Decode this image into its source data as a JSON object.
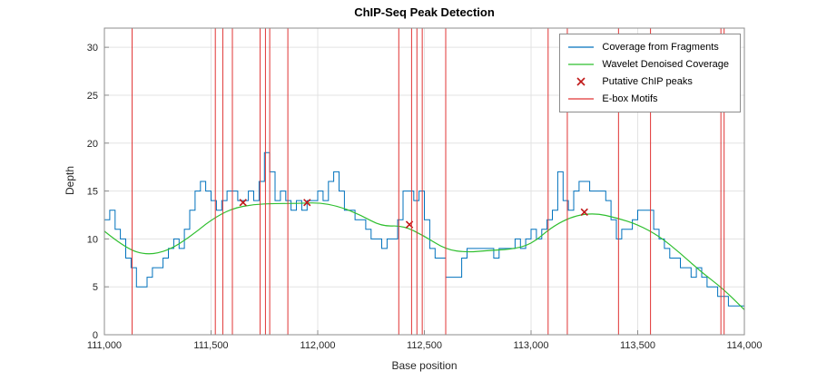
{
  "chart_data": {
    "type": "line",
    "title": "ChIP-Seq Peak Detection",
    "xlabel": "Base position",
    "ylabel": "Depth",
    "xlim": [
      111000,
      114000
    ],
    "ylim": [
      0,
      32
    ],
    "grid": true,
    "legend_position": "northeast",
    "xticks": {
      "values": [
        111000,
        111500,
        112000,
        112500,
        113000,
        113500,
        114000
      ],
      "labels": [
        "111,000",
        "111,500",
        "112,000",
        "112,500",
        "113,000",
        "113,500",
        "114,000"
      ]
    },
    "yticks": {
      "values": [
        0,
        5,
        10,
        15,
        20,
        25,
        30
      ],
      "labels": [
        "0",
        "5",
        "10",
        "15",
        "20",
        "25",
        "30"
      ]
    },
    "colors": {
      "coverage": "#0072BD",
      "denoised": "#2fbf2f",
      "peaks": "#c01818",
      "motifs": "#e03434",
      "axis": "#8c8c8c",
      "grid": "#e3e3e3",
      "tick_label": "#262626"
    },
    "series": [
      {
        "name": "Coverage from Fragments",
        "kind": "stairs",
        "color_key": "coverage",
        "x0": 111000,
        "dx": 25,
        "y": [
          12,
          13,
          11,
          10,
          8,
          7,
          5,
          5,
          6,
          7,
          7,
          8,
          9,
          10,
          9,
          11,
          13,
          15,
          16,
          15,
          14,
          13,
          14,
          15,
          15,
          14,
          14,
          15,
          14,
          16,
          19,
          17,
          14,
          15,
          14,
          13,
          14,
          13,
          14,
          14,
          15,
          14,
          16,
          17,
          15,
          13,
          13,
          12,
          12,
          11,
          10,
          10,
          9,
          10,
          10,
          12,
          15,
          15,
          14,
          15,
          12,
          9,
          8,
          8,
          6,
          6,
          6,
          8,
          9,
          9,
          9,
          9,
          9,
          8,
          9,
          9,
          9,
          10,
          9,
          10,
          11,
          10,
          11,
          12,
          13,
          17,
          14,
          13,
          15,
          16,
          16,
          15,
          15,
          15,
          14,
          12,
          10,
          11,
          11,
          12,
          13,
          13,
          13,
          11,
          10,
          9,
          8,
          8,
          7,
          7,
          6,
          7,
          6,
          5,
          5,
          4,
          4,
          3,
          3,
          3,
          3
        ]
      },
      {
        "name": "Wavelet Denoised Coverage",
        "kind": "smooth",
        "color_key": "denoised",
        "x0": 111000,
        "dx": 100,
        "y": [
          10.8,
          9.0,
          8.3,
          8.8,
          10.2,
          12.0,
          13.2,
          13.6,
          13.7,
          13.7,
          13.8,
          13.4,
          12.5,
          11.3,
          11.4,
          10.3,
          8.9,
          8.6,
          8.8,
          8.9,
          9.4,
          11.3,
          12.4,
          12.7,
          12.2,
          11.5,
          10.3,
          8.5,
          6.5,
          4.8,
          2.6
        ]
      },
      {
        "name": "Putative ChIP peaks",
        "kind": "xmarkers",
        "color_key": "peaks",
        "x": [
          111650,
          111950,
          112430,
          113250
        ],
        "y": [
          13.8,
          13.8,
          11.5,
          12.8
        ]
      },
      {
        "name": "E-box Motifs",
        "kind": "vlines",
        "color_key": "motifs",
        "x": [
          111130,
          111520,
          111555,
          111600,
          111730,
          111755,
          111775,
          111860,
          112380,
          112440,
          112465,
          112490,
          112600,
          113080,
          113170,
          113410,
          113560,
          113890,
          113905
        ]
      }
    ]
  }
}
